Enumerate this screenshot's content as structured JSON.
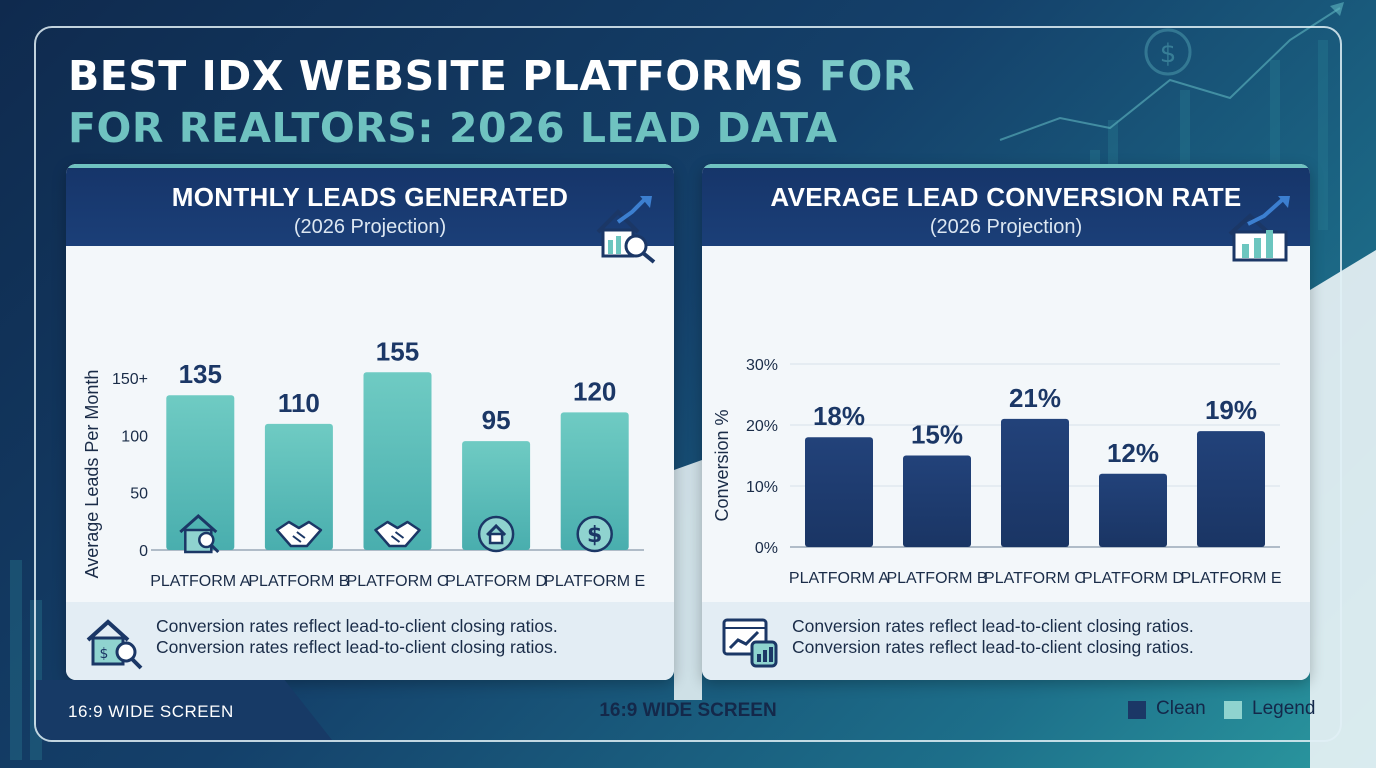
{
  "title": {
    "line1_main": "BEST IDX WEBSITE PLATFORMS",
    "line1_accent": "FOR",
    "line2": "FOR REALTORS: 2026 LEAD DATA"
  },
  "colors": {
    "navy": "#1b3766",
    "teal": "#6cc6bf",
    "background": "#143a63"
  },
  "left_panel": {
    "title": "MONTHLY LEADS GENERATED",
    "subtitle": "(2026 Projection)",
    "header_icon": "house-chart-magnifier-icon",
    "footer_icon": "house-dollar-magnifier-icon",
    "footer_line1": "Conversion rates reflect lead-to-client closing ratios.",
    "footer_line2": "Conversion rates reflect lead-to-client closing ratios."
  },
  "right_panel": {
    "title": "AVERAGE LEAD CONVERSION RATE",
    "subtitle": "(2026 Projection)",
    "header_icon": "house-bar-chart-icon",
    "footer_icon": "browser-chart-icon",
    "footer_line1": "Conversion rates reflect lead-to-client closing ratios.",
    "footer_line2": "Conversion rates reflect lead-to-client closing ratios."
  },
  "chart_data": [
    {
      "type": "bar",
      "title": "MONTHLY LEADS GENERATED",
      "subtitle": "(2026 Projection)",
      "categories": [
        "PLATFORM A",
        "PLATFORM B",
        "PLATFORM C",
        "PLATFORM D",
        "PLATFORM E"
      ],
      "values": [
        135,
        110,
        155,
        95,
        120
      ],
      "data_labels": [
        "135",
        "110",
        "155",
        "95",
        "120"
      ],
      "ylabel": "Average Leads Per Month",
      "xlabel": "",
      "ylim": [
        0,
        150
      ],
      "yticks": [
        0,
        50,
        100,
        150
      ],
      "ytick_labels": [
        "0",
        "50",
        "100",
        "150+"
      ],
      "bar_icons": [
        "house-magnifier-icon",
        "handshake-icon",
        "handshake-icon",
        "house-badge-icon",
        "dollar-icon"
      ],
      "color": "#6cc6bf",
      "grid": false
    },
    {
      "type": "bar",
      "title": "AVERAGE LEAD CONVERSION RATE",
      "subtitle": "(2026 Projection)",
      "categories": [
        "PLATFORM A",
        "PLATFORM B",
        "PLATFORM C",
        "PLATFORM D",
        "PLATFORM E"
      ],
      "values": [
        18,
        15,
        21,
        12,
        19
      ],
      "data_labels": [
        "18%",
        "15%",
        "21%",
        "12%",
        "19%"
      ],
      "ylabel": "Conversion %",
      "xlabel": "",
      "ylim": [
        0,
        30
      ],
      "yticks": [
        0,
        10,
        20,
        30
      ],
      "ytick_labels": [
        "0%",
        "10%",
        "20%",
        "30%"
      ],
      "color": "#1b3766",
      "grid": true
    }
  ],
  "footer": {
    "left_text": "16:9 WIDE SCREEN",
    "center_text": "16:9 WIDE SCREEN",
    "legend": [
      {
        "label": "Clean",
        "color": "#1b3766"
      },
      {
        "label": "Legend",
        "color": "#8fd3cf"
      }
    ]
  }
}
